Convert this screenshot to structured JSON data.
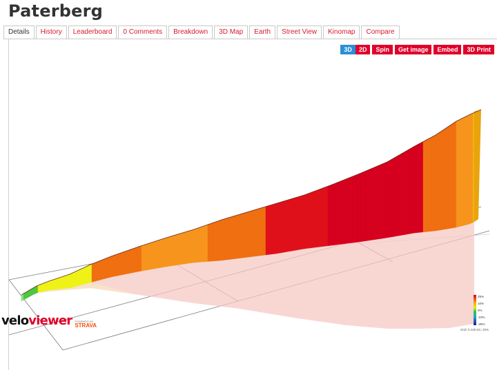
{
  "page": {
    "title": "Paterberg"
  },
  "tabs": [
    {
      "label": "Details",
      "active": true
    },
    {
      "label": "History"
    },
    {
      "label": "Leaderboard"
    },
    {
      "label": "0 Comments"
    },
    {
      "label": "Breakdown"
    },
    {
      "label": "3D Map"
    },
    {
      "label": "Earth"
    },
    {
      "label": "Street View"
    },
    {
      "label": "Kinomap"
    },
    {
      "label": "Compare"
    }
  ],
  "toolbar": {
    "btn_3d": "3D",
    "btn_2d": "2D",
    "spin": "Spin",
    "get_image": "Get image",
    "embed": "Embed",
    "print_3d": "3D Print",
    "active_mode": "3D"
  },
  "viewer": {
    "gradient_colors": {
      "green": "#4fc73f",
      "yellow": "#eef216",
      "orange": "#f7941d",
      "dark_orange": "#ef6f11",
      "red": "#e0101a",
      "crimson": "#d6001f"
    },
    "legend": {
      "labels": [
        "25%",
        "10%",
        "0%",
        "-10%",
        "-25%"
      ],
      "grid_note": "Grid: 0.125 km; 25%"
    }
  },
  "branding": {
    "logo_part1": "velo",
    "logo_part2": "viewer",
    "powered_by": "POWERED BY",
    "strava": "STRAVA"
  }
}
